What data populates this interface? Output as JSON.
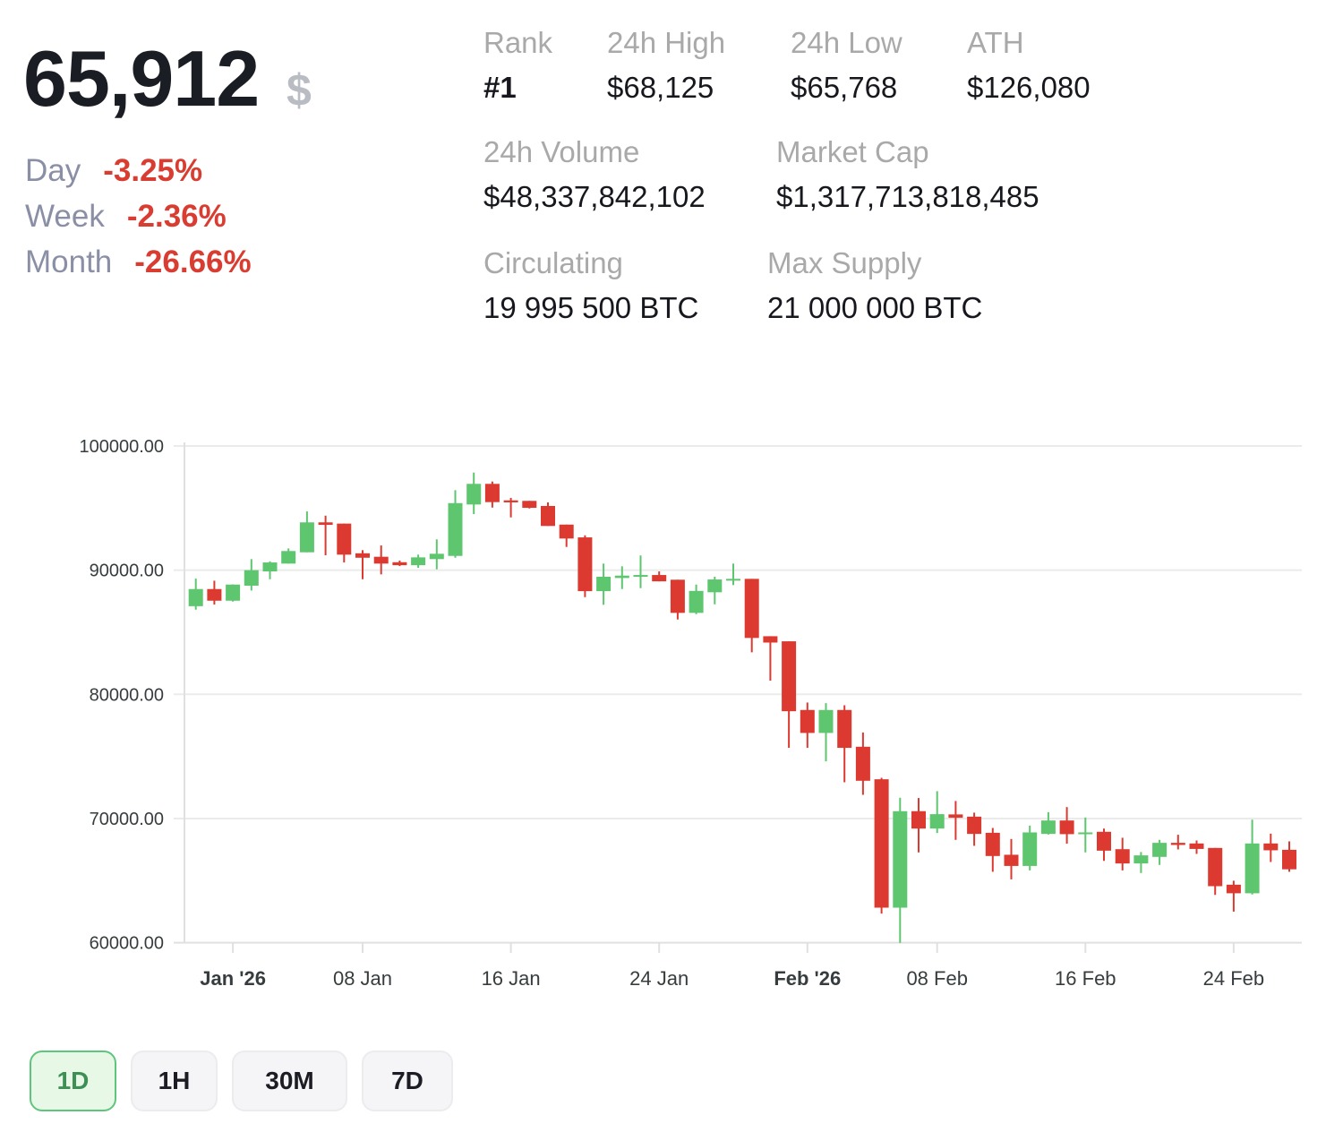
{
  "price": {
    "value": "65,912",
    "currency_symbol": "$"
  },
  "changes": [
    {
      "label": "Day",
      "value": "-3.25%"
    },
    {
      "label": "Week",
      "value": "-2.36%"
    },
    {
      "label": "Month",
      "value": "-26.66%"
    }
  ],
  "stats": {
    "rank": {
      "label": "Rank",
      "value": "#1"
    },
    "high_24h": {
      "label": "24h High",
      "value": "$68,125"
    },
    "low_24h": {
      "label": "24h Low",
      "value": "$65,768"
    },
    "ath": {
      "label": "ATH",
      "value": "$126,080"
    },
    "volume_24h": {
      "label": "24h Volume",
      "value": "$48,337,842,102"
    },
    "market_cap": {
      "label": "Market Cap",
      "value": "$1,317,713,818,485"
    },
    "circulating": {
      "label": "Circulating",
      "value": "19 995 500 BTC"
    },
    "max_supply": {
      "label": "Max Supply",
      "value": "21 000 000 BTC"
    }
  },
  "timeframes": [
    {
      "label": "1D",
      "active": true
    },
    {
      "label": "1H",
      "active": false
    },
    {
      "label": "30M",
      "active": false
    },
    {
      "label": "7D",
      "active": false
    }
  ],
  "colors": {
    "up": "#5ec66f",
    "down": "#dc3a30",
    "change_negative": "#d93c30",
    "grid": "#ebebeb",
    "axis": "#e0e0e0",
    "axis_text": "#373d3f"
  },
  "chart_data": {
    "type": "candlestick",
    "title": "",
    "xlabel": "",
    "ylabel": "",
    "ylim": [
      60000,
      100000
    ],
    "grid": true,
    "legend": "none",
    "y_ticks": [
      "100000.00",
      "90000.00",
      "80000.00",
      "70000.00",
      "60000.00"
    ],
    "x_ticks": [
      {
        "label": "Jan '26",
        "index": 2,
        "bold": true
      },
      {
        "label": "08 Jan",
        "index": 9,
        "bold": false
      },
      {
        "label": "16 Jan",
        "index": 17,
        "bold": false
      },
      {
        "label": "24 Jan",
        "index": 25,
        "bold": false
      },
      {
        "label": "Feb '26",
        "index": 33,
        "bold": true
      },
      {
        "label": "08 Feb",
        "index": 40,
        "bold": false
      },
      {
        "label": "16 Feb",
        "index": 48,
        "bold": false
      },
      {
        "label": "24 Feb",
        "index": 56,
        "bold": false
      }
    ],
    "ohlc_fields": [
      "open",
      "high",
      "low",
      "close"
    ],
    "x": [
      "Dec 30",
      "Dec 31",
      "Jan 01",
      "Jan 02",
      "Jan 03",
      "Jan 04",
      "Jan 05",
      "Jan 06",
      "Jan 07",
      "Jan 08",
      "Jan 09",
      "Jan 10",
      "Jan 11",
      "Jan 12",
      "Jan 13",
      "Jan 14",
      "Jan 15",
      "Jan 16",
      "Jan 17",
      "Jan 18",
      "Jan 19",
      "Jan 20",
      "Jan 21",
      "Jan 22",
      "Jan 23",
      "Jan 24",
      "Jan 25",
      "Jan 26",
      "Jan 27",
      "Jan 28",
      "Jan 29",
      "Jan 30",
      "Jan 31",
      "Feb 01",
      "Feb 02",
      "Feb 03",
      "Feb 04",
      "Feb 05",
      "Feb 06",
      "Feb 07",
      "Feb 08",
      "Feb 09",
      "Feb 10",
      "Feb 11",
      "Feb 12",
      "Feb 13",
      "Feb 14",
      "Feb 15",
      "Feb 16",
      "Feb 17",
      "Feb 18",
      "Feb 19",
      "Feb 20",
      "Feb 21",
      "Feb 22",
      "Feb 23",
      "Feb 24",
      "Feb 25",
      "Feb 26",
      "Feb 27"
    ],
    "ohlc": [
      [
        87100,
        89320,
        86820,
        88480
      ],
      [
        88480,
        89150,
        87230,
        87540
      ],
      [
        87540,
        88850,
        87470,
        88840
      ],
      [
        88750,
        90890,
        88360,
        90000
      ],
      [
        89900,
        90710,
        89270,
        90620
      ],
      [
        90530,
        91750,
        90530,
        91540
      ],
      [
        91440,
        94730,
        91440,
        93850
      ],
      [
        93850,
        94390,
        91200,
        93650
      ],
      [
        93750,
        93750,
        90620,
        91250
      ],
      [
        91360,
        91610,
        89270,
        91000
      ],
      [
        91080,
        91990,
        89660,
        90530
      ],
      [
        90640,
        90770,
        90330,
        90400
      ],
      [
        90400,
        91250,
        90190,
        91030
      ],
      [
        90890,
        92480,
        90070,
        91320
      ],
      [
        91150,
        96440,
        91000,
        95400
      ],
      [
        95290,
        97860,
        94520,
        96950
      ],
      [
        96950,
        97140,
        95040,
        95480
      ],
      [
        95620,
        95820,
        94250,
        95460
      ],
      [
        95580,
        95580,
        94970,
        95020
      ],
      [
        95170,
        95460,
        93560,
        93560
      ],
      [
        93670,
        93670,
        91870,
        92550
      ],
      [
        92640,
        92810,
        87830,
        88310
      ],
      [
        88310,
        90530,
        87210,
        89470
      ],
      [
        89370,
        90310,
        88480,
        89560
      ],
      [
        89470,
        91180,
        88550,
        89610
      ],
      [
        89610,
        89900,
        89100,
        89100
      ],
      [
        89230,
        89230,
        86030,
        86560
      ],
      [
        86560,
        88840,
        86460,
        88330
      ],
      [
        88220,
        89470,
        87250,
        89250
      ],
      [
        89160,
        90530,
        88800,
        89300
      ],
      [
        89300,
        89300,
        83380,
        84540
      ],
      [
        84680,
        84680,
        81100,
        84170
      ],
      [
        84270,
        84270,
        75690,
        78640
      ],
      [
        78740,
        79340,
        75690,
        76890
      ],
      [
        76890,
        79290,
        74600,
        78740
      ],
      [
        78740,
        79120,
        72920,
        75690
      ],
      [
        75780,
        76930,
        71910,
        73040
      ],
      [
        73160,
        73280,
        62340,
        62820
      ],
      [
        62820,
        71670,
        59980,
        70590
      ],
      [
        70590,
        71650,
        67270,
        69190
      ],
      [
        69190,
        72200,
        68830,
        70350
      ],
      [
        70330,
        71410,
        68280,
        70060
      ],
      [
        70150,
        70470,
        67800,
        68760
      ],
      [
        68850,
        69240,
        65710,
        66980
      ],
      [
        67080,
        68350,
        65100,
        66180
      ],
      [
        66180,
        69430,
        65820,
        68880
      ],
      [
        68760,
        70510,
        68710,
        69840
      ],
      [
        69840,
        70920,
        67970,
        68740
      ],
      [
        68740,
        70080,
        67270,
        68880
      ],
      [
        68930,
        69190,
        66590,
        67410
      ],
      [
        67530,
        68450,
        65820,
        66380
      ],
      [
        66380,
        67300,
        65610,
        67030
      ],
      [
        66910,
        68280,
        66260,
        68040
      ],
      [
        68040,
        68690,
        67510,
        67870
      ],
      [
        67990,
        68230,
        67150,
        67550
      ],
      [
        67630,
        67630,
        63850,
        64550
      ],
      [
        64670,
        64990,
        62500,
        63980
      ],
      [
        63980,
        69910,
        63880,
        67990
      ],
      [
        67990,
        68780,
        66500,
        67440
      ],
      [
        67480,
        68160,
        65710,
        65910
      ]
    ]
  }
}
